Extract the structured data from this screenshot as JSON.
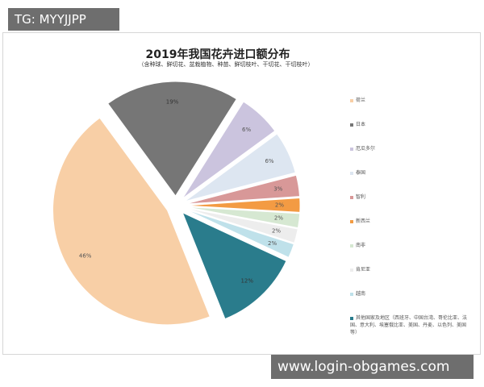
{
  "watermark_top": "TG: MYYJJPP",
  "watermark_bottom": "www.login-obgames.com",
  "chart_data": {
    "type": "pie",
    "title": "2019年我国花卉进口额分布",
    "subtitle": "（含种球、鲜切花、盆栽植物、种苗、鲜切枝叶、干切花、干切枝叶）",
    "series": [
      {
        "name": "荷兰",
        "value": 46,
        "label": "46%",
        "color": "#f8cfa6"
      },
      {
        "name": "日本",
        "value": 19,
        "label": "19%",
        "color": "#767676"
      },
      {
        "name": "厄瓜多尔",
        "value": 6,
        "label": "6%",
        "color": "#cbc4de"
      },
      {
        "name": "泰国",
        "value": 6,
        "label": "6%",
        "color": "#dde6f1"
      },
      {
        "name": "智利",
        "value": 3,
        "label": "3%",
        "color": "#d89898"
      },
      {
        "name": "新西兰",
        "value": 2,
        "label": "2%",
        "color": "#f39b43"
      },
      {
        "name": "南非",
        "value": 2,
        "label": "2%",
        "color": "#d6e8d2"
      },
      {
        "name": "肯尼亚",
        "value": 2,
        "label": "2%",
        "color": "#ededed"
      },
      {
        "name": "越南",
        "value": 2,
        "label": "2%",
        "color": "#bfe1ea"
      },
      {
        "name": "其他国家及地区（西班牙、中国台湾、哥伦比亚、法国、意大利、埃塞俄比亚、美国、丹麦、以色列、美国等）",
        "value": 12,
        "label": "12%",
        "color": "#2a7c8c"
      }
    ],
    "legend_position": "right"
  }
}
